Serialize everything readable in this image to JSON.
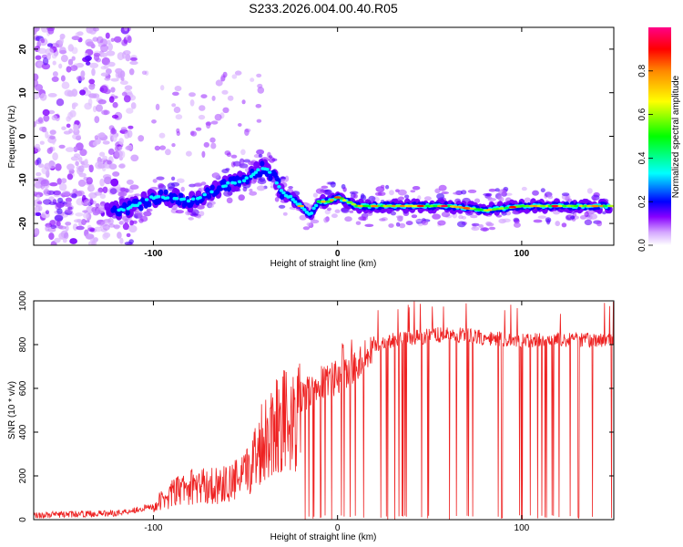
{
  "title": "S233.2026.004.00.40.R05",
  "chart_data": [
    {
      "type": "heatmap",
      "xlabel": "Height of straight line (km)",
      "ylabel": "Frequency (Hz)",
      "xlim": [
        -165,
        150
      ],
      "ylim": [
        -25,
        25
      ],
      "xticks": [
        -100,
        0,
        100
      ],
      "yticks": [
        -20,
        -10,
        0,
        10,
        20
      ],
      "grid": false,
      "ridge": {
        "x": [
          -120,
          -110,
          -100,
          -90,
          -80,
          -70,
          -60,
          -50,
          -40,
          -35,
          -30,
          -25,
          -20,
          -15,
          -10,
          -5,
          0,
          10,
          20,
          40,
          60,
          80,
          100,
          120,
          140,
          148
        ],
        "freq": [
          -17,
          -16,
          -14,
          -14,
          -15,
          -13,
          -11,
          -10,
          -7,
          -9,
          -13,
          -14,
          -16,
          -18,
          -15,
          -15,
          -14,
          -16,
          -16,
          -16,
          -16,
          -17,
          -16,
          -16,
          -16,
          -16
        ]
      },
      "colorbar": {
        "label": "Normalized spectral amplitude",
        "range": [
          0,
          1
        ],
        "ticks": [
          "0.0",
          "0.2",
          "0.4",
          "0.6",
          "0.8"
        ],
        "colors": [
          "#ffffff",
          "#d4a6ff",
          "#8800ff",
          "#0000ff",
          "#00ffff",
          "#00ff00",
          "#ffff00",
          "#ff8800",
          "#ff0000",
          "#ff0088"
        ]
      }
    },
    {
      "type": "line",
      "xlabel": "Height of straight line (km)",
      "ylabel": "SNR (10 * v/v)",
      "xlim": [
        -165,
        150
      ],
      "ylim": [
        0,
        1000
      ],
      "xticks": [
        -100,
        0,
        100
      ],
      "yticks": [
        0,
        200,
        400,
        600,
        800,
        1000
      ],
      "grid": false,
      "series": [
        {
          "name": "SNR",
          "color": "#ee2222",
          "envelope": {
            "x": [
              -165,
              -120,
              -100,
              -90,
              -80,
              -60,
              -50,
              -40,
              -35,
              -30,
              -25,
              -20,
              -10,
              0,
              10,
              20,
              30,
              40,
              60,
              80,
              100,
              120,
              140,
              150
            ],
            "y": [
              20,
              30,
              60,
              120,
              150,
              160,
              200,
              380,
              420,
              480,
              400,
              550,
              620,
              650,
              700,
              790,
              820,
              830,
              850,
              830,
              820,
              820,
              820,
              820
            ]
          }
        }
      ]
    }
  ]
}
